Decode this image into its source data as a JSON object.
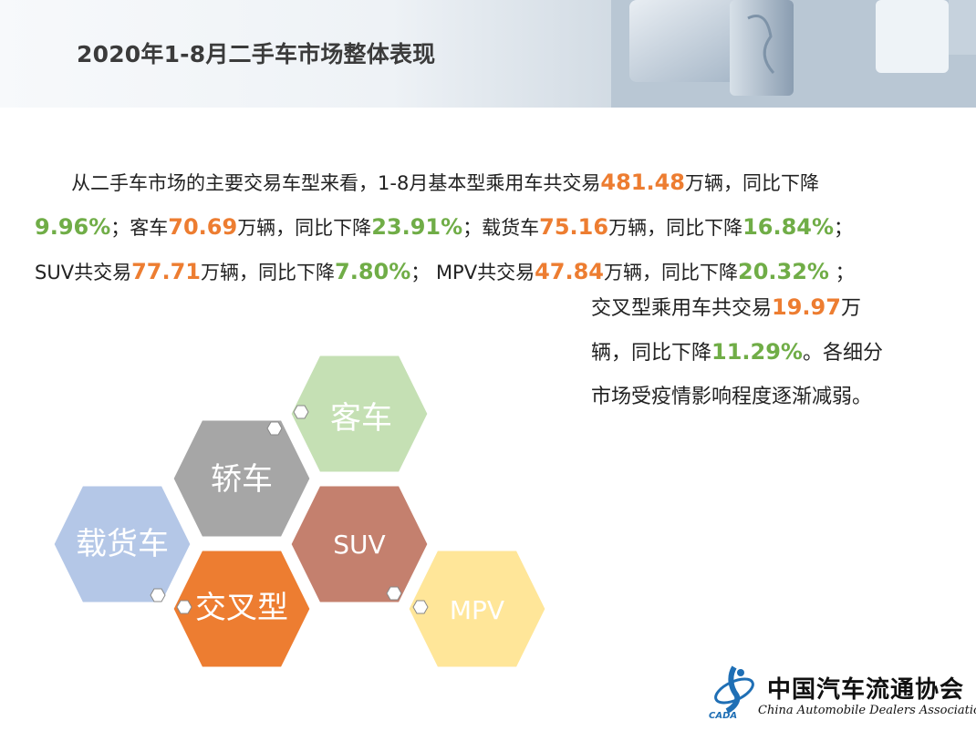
{
  "title": "2020年1-8月二手车市场整体表现",
  "paragraph": {
    "line1": [
      "从二手车市场的主要交易车型来看，1-8月基本型乘用车共交易",
      "481.48",
      "万辆，同比下降"
    ],
    "line2": [
      "9.96%",
      "；客车",
      "70.69",
      "万辆，同比下降",
      "23.91%",
      "；载货车",
      "75.16",
      "万辆，同比下降",
      "16.84%",
      "；"
    ],
    "line3": [
      "SUV共交易",
      "77.71",
      "万辆，同比下降",
      "7.80%",
      "； MPV共交易",
      "47.84",
      "万辆，同比下降",
      "20.32%",
      " ；"
    ],
    "line4": [
      "交叉型乘用车共交易",
      "19.97",
      "万"
    ],
    "line5": [
      "辆，同比下降",
      "11.29%",
      "。各细分"
    ],
    "line6": [
      "市场受疫情影响程度逐渐减弱。"
    ]
  },
  "hexagons": [
    {
      "label": "客车",
      "color": "#c5e0b4"
    },
    {
      "label": "轿车",
      "color": "#a6a6a6"
    },
    {
      "label": "载货车",
      "color": "#b4c7e7"
    },
    {
      "label": "SUV",
      "color": "#c4806e"
    },
    {
      "label": "交叉型",
      "color": "#ed7d31"
    },
    {
      "label": "MPV",
      "color": "#ffe699"
    }
  ],
  "logo": {
    "cn": "中国汽车流通协会",
    "en": "China Automobile Dealers Association",
    "abbr": "CADA"
  }
}
